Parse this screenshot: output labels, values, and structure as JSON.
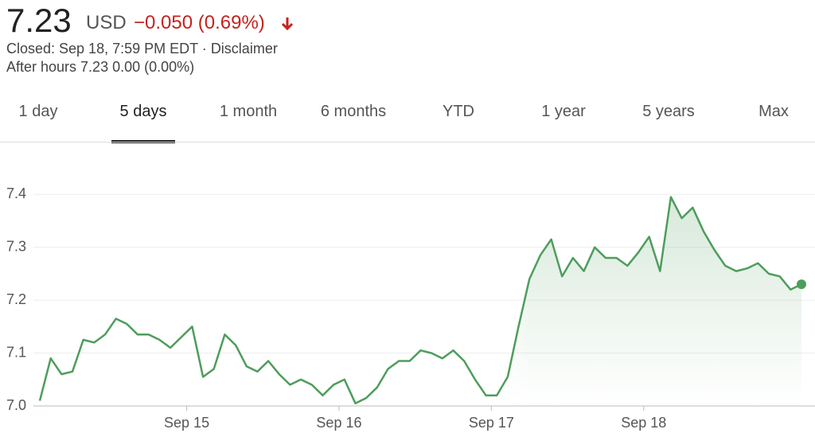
{
  "header": {
    "price": "7.23",
    "currency": "USD",
    "change": "−0.050 (0.69%)",
    "closed": "Closed: Sep 18, 7:59 PM EDT ·",
    "disclaimer": "Disclaimer",
    "after_hours": "After hours 7.23 0.00 (0.00%)"
  },
  "tabs": {
    "items": [
      "1 day",
      "5 days",
      "1 month",
      "6 months",
      "YTD",
      "1 year",
      "5 years",
      "Max"
    ],
    "selected": 1
  },
  "chart_data": {
    "type": "line",
    "color": "#4e9d5b",
    "grid": true,
    "values": [
      7.01,
      7.09,
      7.06,
      7.065,
      7.125,
      7.12,
      7.135,
      7.165,
      7.155,
      7.135,
      7.135,
      7.125,
      7.11,
      7.13,
      7.15,
      7.055,
      7.07,
      7.135,
      7.115,
      7.075,
      7.065,
      7.085,
      7.06,
      7.04,
      7.05,
      7.04,
      7.02,
      7.04,
      7.05,
      7.005,
      7.015,
      7.035,
      7.07,
      7.085,
      7.085,
      7.105,
      7.1,
      7.09,
      7.105,
      7.085,
      7.05,
      7.02,
      7.02,
      7.055,
      7.15,
      7.24,
      7.285,
      7.315,
      7.245,
      7.28,
      7.255,
      7.3,
      7.28,
      7.28,
      7.265,
      7.29,
      7.32,
      7.255,
      7.395,
      7.355,
      7.375,
      7.33,
      7.295,
      7.265,
      7.255,
      7.26,
      7.27,
      7.25,
      7.245,
      7.22,
      7.23
    ],
    "xlim": [
      0,
      70
    ],
    "xticks": [
      {
        "value": 13.5,
        "label": "Sep 15"
      },
      {
        "value": 27.5,
        "label": "Sep 16"
      },
      {
        "value": 41.5,
        "label": "Sep 17"
      },
      {
        "value": 55.5,
        "label": "Sep 18"
      }
    ],
    "ylim": [
      7.0,
      7.45
    ],
    "yticks": [
      {
        "value": 7,
        "label": "7.0"
      },
      7.1,
      7.2,
      7.3,
      7.4
    ]
  }
}
